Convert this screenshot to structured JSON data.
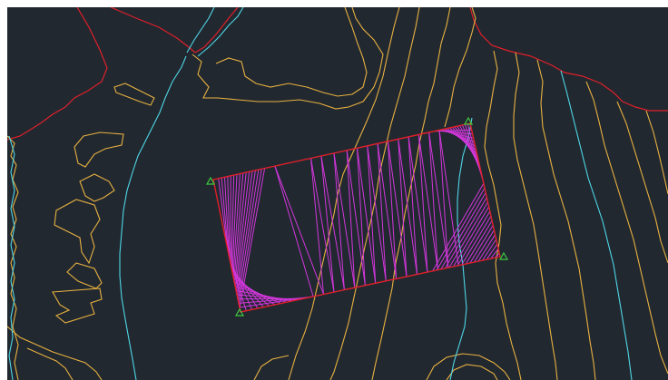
{
  "canvas": {
    "background": "#212830",
    "frame": "#ffffff"
  },
  "layers": {
    "boundary": {
      "color": "#e0202a",
      "label": "boundary"
    },
    "contour": {
      "color": "#e8b140",
      "label": "contour"
    },
    "index_contour": {
      "color": "#4fd6e6",
      "label": "index-contour"
    },
    "triangulation": {
      "color": "#d237db",
      "label": "triangulation"
    },
    "vertex_marker": {
      "color": "#3ec83e",
      "label": "vertex-marker"
    }
  }
}
